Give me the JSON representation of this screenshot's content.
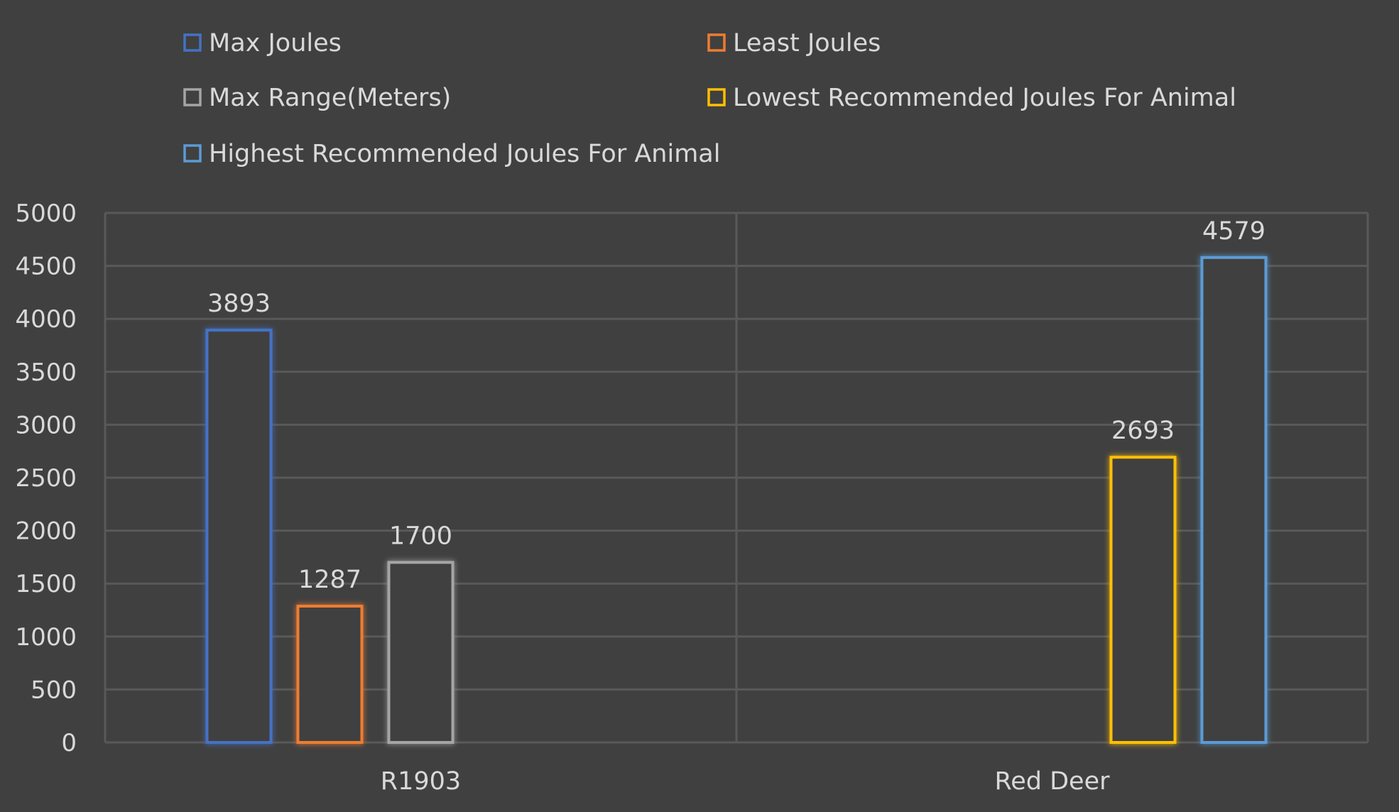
{
  "chart_data": {
    "type": "bar",
    "title": "",
    "xlabel": "",
    "ylabel": "",
    "categories": [
      "R1903",
      "Red Deer"
    ],
    "ylim": [
      0,
      5000
    ],
    "yticks": [
      0,
      500,
      1000,
      1500,
      2000,
      2500,
      3000,
      3500,
      4000,
      4500,
      5000
    ],
    "grid": true,
    "legend_position": "top",
    "series": [
      {
        "name": "Max Joules",
        "color": "#4472c4",
        "values": [
          3893,
          null
        ]
      },
      {
        "name": "Least Joules",
        "color": "#ed7d31",
        "values": [
          1287,
          null
        ]
      },
      {
        "name": "Max Range(Meters)",
        "color": "#a5a5a5",
        "values": [
          1700,
          null
        ]
      },
      {
        "name": "Lowest Recommended Joules For Animal",
        "color": "#ffc000",
        "values": [
          null,
          2693
        ]
      },
      {
        "name": "Highest Recommended Joules For Animal",
        "color": "#5b9bd5",
        "values": [
          null,
          4579
        ]
      }
    ]
  }
}
